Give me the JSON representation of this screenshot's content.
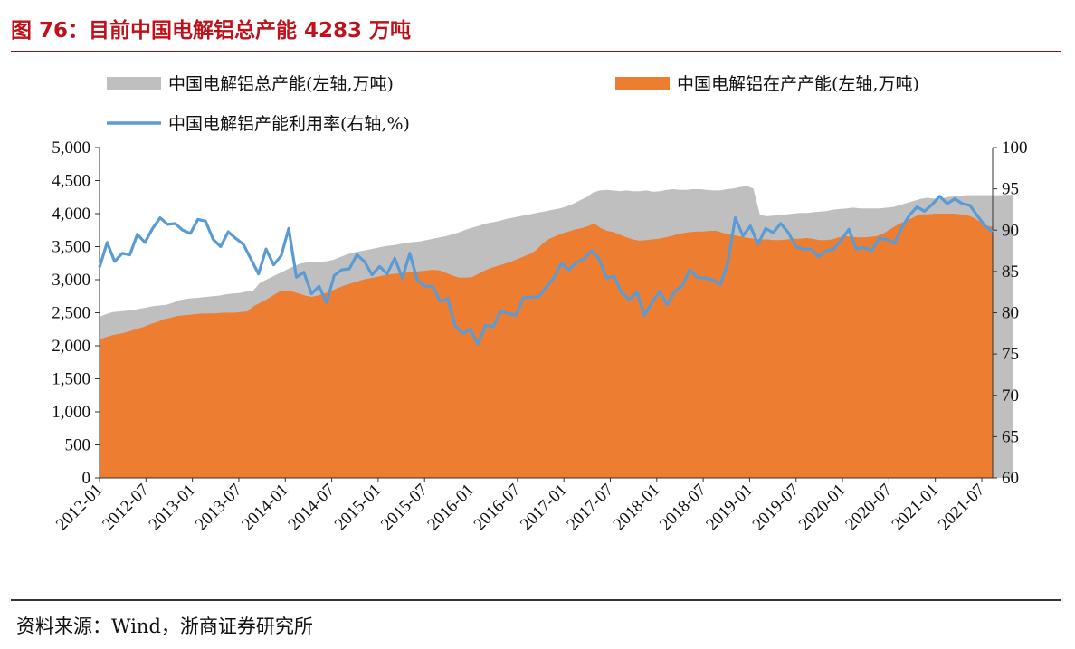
{
  "header": {
    "title": "图 76：目前中国电解铝总产能 4283 万吨"
  },
  "footer": {
    "source": "资料来源：Wind，浙商证券研究所"
  },
  "chart_data": {
    "type": "area",
    "legend": [
      {
        "name": "中国电解铝总产能(左轴,万吨)",
        "color": "#bfbfbf",
        "kind": "area"
      },
      {
        "name": "中国电解铝在产产能(左轴,万吨)",
        "color": "#ed7d31",
        "kind": "area"
      },
      {
        "name": "中国电解铝产能利用率(右轴,%)",
        "color": "#5b9bd5",
        "kind": "line"
      }
    ],
    "x_ticks": [
      "2012-01",
      "2012-07",
      "2013-01",
      "2013-07",
      "2014-01",
      "2014-07",
      "2015-01",
      "2015-07",
      "2016-01",
      "2016-07",
      "2017-01",
      "2017-07",
      "2018-01",
      "2018-07",
      "2019-01",
      "2019-07",
      "2020-01",
      "2020-07",
      "2021-01",
      "2021-07"
    ],
    "y_left": {
      "min": 0,
      "max": 5000,
      "ticks": [
        "0",
        "500",
        "1,000",
        "1,500",
        "2,000",
        "2,500",
        "3,000",
        "3,500",
        "4,000",
        "4,500",
        "5,000"
      ]
    },
    "y_right": {
      "min": 60,
      "max": 100,
      "ticks": [
        "60",
        "65",
        "70",
        "75",
        "80",
        "85",
        "90",
        "95",
        "100"
      ]
    },
    "series": [
      {
        "name": "总产能",
        "values": [
          2440,
          2480,
          2510,
          2520,
          2530,
          2540,
          2560,
          2580,
          2600,
          2610,
          2620,
          2650,
          2690,
          2710,
          2720,
          2730,
          2740,
          2750,
          2760,
          2780,
          2790,
          2800,
          2820,
          2830,
          2950,
          3000,
          3050,
          3100,
          3150,
          3200,
          3240,
          3260,
          3270,
          3270,
          3280,
          3300,
          3340,
          3380,
          3410,
          3430,
          3450,
          3470,
          3490,
          3510,
          3520,
          3540,
          3560,
          3570,
          3580,
          3600,
          3620,
          3640,
          3660,
          3690,
          3720,
          3760,
          3790,
          3820,
          3850,
          3870,
          3890,
          3920,
          3940,
          3960,
          3980,
          4000,
          4020,
          4040,
          4060,
          4080,
          4110,
          4150,
          4200,
          4250,
          4320,
          4350,
          4360,
          4350,
          4340,
          4350,
          4340,
          4340,
          4350,
          4330,
          4340,
          4360,
          4370,
          4360,
          4360,
          4370,
          4370,
          4360,
          4350,
          4350,
          4370,
          4380,
          4400,
          4420,
          4380,
          3980,
          3960,
          3970,
          3980,
          3990,
          4000,
          4010,
          4010,
          4020,
          4030,
          4040,
          4060,
          4070,
          4080,
          4090,
          4080,
          4080,
          4080,
          4080,
          4090,
          4100,
          4130,
          4160,
          4190,
          4220,
          4240,
          4230,
          4220,
          4250,
          4260,
          4270,
          4280,
          4280,
          4280,
          4280,
          4280,
          4280,
          4283,
          4283
        ]
      },
      {
        "name": "在产产能",
        "values": [
          2100,
          2130,
          2160,
          2180,
          2200,
          2230,
          2260,
          2290,
          2330,
          2360,
          2400,
          2420,
          2450,
          2460,
          2470,
          2480,
          2490,
          2490,
          2490,
          2500,
          2500,
          2500,
          2510,
          2520,
          2600,
          2650,
          2700,
          2760,
          2820,
          2840,
          2820,
          2790,
          2760,
          2740,
          2760,
          2790,
          2830,
          2870,
          2910,
          2940,
          2970,
          3000,
          3020,
          3040,
          3060,
          3080,
          3090,
          3100,
          3110,
          3120,
          3130,
          3140,
          3150,
          3140,
          3100,
          3060,
          3030,
          3030,
          3040,
          3090,
          3140,
          3180,
          3210,
          3240,
          3270,
          3310,
          3350,
          3390,
          3450,
          3550,
          3620,
          3660,
          3700,
          3730,
          3760,
          3780,
          3810,
          3850,
          3780,
          3740,
          3720,
          3680,
          3640,
          3610,
          3590,
          3600,
          3610,
          3620,
          3640,
          3660,
          3690,
          3710,
          3720,
          3730,
          3730,
          3740,
          3740,
          3710,
          3690,
          3670,
          3650,
          3630,
          3620,
          3610,
          3610,
          3600,
          3600,
          3610,
          3620,
          3620,
          3630,
          3620,
          3600,
          3600,
          3610,
          3640,
          3660,
          3650,
          3640,
          3640,
          3650,
          3660,
          3700,
          3760,
          3820,
          3870,
          3910,
          3960,
          3990,
          3990,
          4000,
          4000,
          4000,
          4000,
          3990,
          3980,
          3940,
          3880,
          3820,
          3800
        ]
      },
      {
        "name": "产能利用率",
        "axis": "right",
        "values": [
          85.5,
          88.5,
          86.2,
          87.2,
          87,
          89.5,
          88.5,
          90.2,
          91.5,
          90.7,
          90.8,
          90,
          89.6,
          91.3,
          91.1,
          88.9,
          88,
          89.8,
          89,
          88.3,
          86.5,
          84.7,
          87.7,
          85.8,
          86.9,
          90.2,
          84.3,
          84.9,
          82.3,
          83.2,
          81.2,
          84.5,
          85.2,
          85.3,
          87,
          86.2,
          84.6,
          85.6,
          84.7,
          86.6,
          84.2,
          87.2,
          83.9,
          83.2,
          83.2,
          81.4,
          81.7,
          78.4,
          77.5,
          78,
          76.2,
          78.5,
          78.3,
          80.2,
          79.9,
          79.7,
          81.8,
          81.9,
          81.9,
          83.1,
          84.2,
          86,
          85.2,
          86.1,
          86.5,
          87.5,
          86.5,
          84.2,
          84.4,
          82.4,
          81.6,
          82.5,
          79.7,
          81.2,
          82.6,
          81,
          82.6,
          83.3,
          85.2,
          84.3,
          84.2,
          84,
          83.4,
          86,
          91.5,
          89.3,
          90.5,
          88.3,
          90.2,
          89.7,
          90.8,
          89.7,
          88,
          87.7,
          87.7,
          86.8,
          87.5,
          87.7,
          88.8,
          90.1,
          87.7,
          87.9,
          87.5,
          89,
          88.9,
          88.4,
          90.3,
          91.8,
          92.8,
          92.3,
          93.1,
          94.1,
          93.2,
          93.8,
          93.2,
          93,
          91.7,
          90.5,
          89.8
        ]
      }
    ]
  }
}
